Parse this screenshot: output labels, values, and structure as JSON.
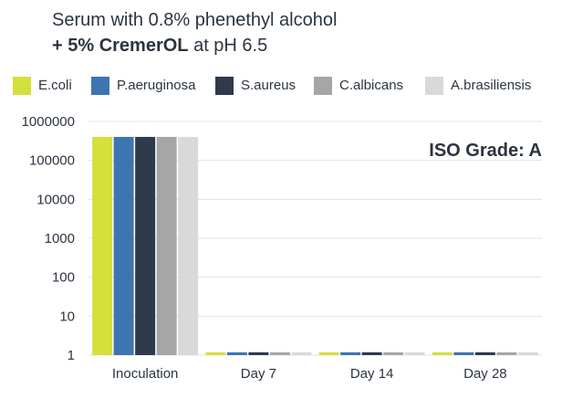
{
  "title": {
    "line1": "Serum with 0.8% phenethyl alcohol",
    "line2_bold": "+ 5% CremerOL",
    "line2_rest": " at pH 6.5"
  },
  "annotation": "ISO Grade: A",
  "chart_data": {
    "type": "bar",
    "y_scale": "log",
    "ylim": [
      1,
      1000000
    ],
    "y_ticks": [
      "1",
      "10",
      "100",
      "1000",
      "10000",
      "100000",
      "1000000"
    ],
    "categories": [
      "Inoculation",
      "Day 7",
      "Day 14",
      "Day 28"
    ],
    "grid": true,
    "legend_position": "top",
    "series": [
      {
        "name": "E.coli",
        "color": "#d4e03c",
        "values": [
          400000,
          1,
          1,
          1
        ]
      },
      {
        "name": "P.aeruginosa",
        "color": "#3d75b0",
        "values": [
          400000,
          1,
          1,
          1
        ]
      },
      {
        "name": "S.aureus",
        "color": "#2f3a4a",
        "values": [
          400000,
          1,
          1,
          1
        ]
      },
      {
        "name": "C.albicans",
        "color": "#a6a6a6",
        "values": [
          400000,
          1,
          1,
          1
        ]
      },
      {
        "name": "A.brasiliensis",
        "color": "#d9d9d9",
        "values": [
          400000,
          1,
          1,
          1
        ]
      }
    ]
  }
}
